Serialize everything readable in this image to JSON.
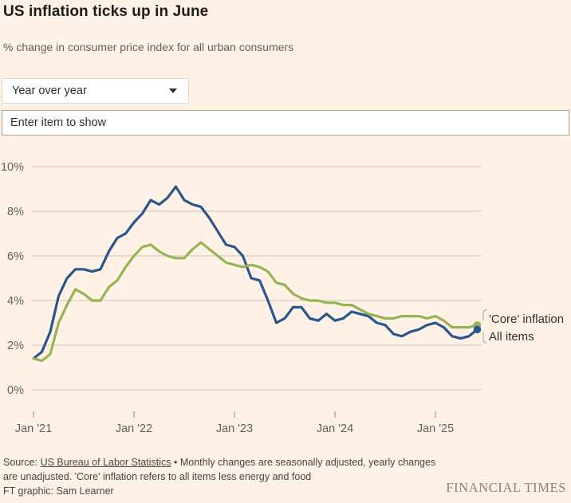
{
  "header": {
    "title": "US inflation ticks up in June",
    "subtitle": "% change in consumer price index for all urban consumers"
  },
  "controls": {
    "dropdown_value": "Year over year",
    "dropdown_icon": "chevron-down-icon",
    "input_placeholder": "Enter item to show"
  },
  "chart_data": {
    "type": "line",
    "title": "US inflation ticks up in June",
    "subtitle": "% change in consumer price index for all urban consumers",
    "x_start": "2021-01",
    "x_end": "2025-06",
    "frequency": "monthly",
    "ylim": [
      0,
      10
    ],
    "grid": "horizontal-only",
    "legend_position": "right-of-line-end",
    "y_ticks": [
      {
        "value": 0,
        "label": "0%"
      },
      {
        "value": 2,
        "label": "2%"
      },
      {
        "value": 4,
        "label": "4%"
      },
      {
        "value": 6,
        "label": "6%"
      },
      {
        "value": 8,
        "label": "8%"
      },
      {
        "value": 10,
        "label": "10%"
      }
    ],
    "x_ticks": [
      {
        "month_index": 0,
        "label": "Jan '21"
      },
      {
        "month_index": 12,
        "label": "Jan '22"
      },
      {
        "month_index": 24,
        "label": "Jan '23"
      },
      {
        "month_index": 36,
        "label": "Jan '24"
      },
      {
        "month_index": 48,
        "label": "Jan '25"
      }
    ],
    "series": [
      {
        "name": "'Core' inflation",
        "color": "#97b455",
        "values": [
          1.4,
          1.3,
          1.6,
          3.0,
          3.8,
          4.5,
          4.3,
          4.0,
          4.0,
          4.6,
          4.9,
          5.5,
          6.0,
          6.4,
          6.5,
          6.2,
          6.0,
          5.9,
          5.9,
          6.3,
          6.6,
          6.3,
          6.0,
          5.7,
          5.6,
          5.5,
          5.6,
          5.5,
          5.3,
          4.8,
          4.7,
          4.3,
          4.1,
          4.0,
          4.0,
          3.9,
          3.9,
          3.8,
          3.8,
          3.6,
          3.4,
          3.3,
          3.2,
          3.2,
          3.3,
          3.3,
          3.3,
          3.2,
          3.3,
          3.1,
          2.8,
          2.8,
          2.8,
          2.9
        ]
      },
      {
        "name": "All items",
        "color": "#28578e",
        "values": [
          1.4,
          1.7,
          2.6,
          4.2,
          5.0,
          5.4,
          5.4,
          5.3,
          5.4,
          6.2,
          6.8,
          7.0,
          7.5,
          7.9,
          8.5,
          8.3,
          8.6,
          9.1,
          8.5,
          8.3,
          8.2,
          7.7,
          7.1,
          6.5,
          6.4,
          6.0,
          5.0,
          4.9,
          4.0,
          3.0,
          3.2,
          3.7,
          3.7,
          3.2,
          3.1,
          3.4,
          3.1,
          3.2,
          3.5,
          3.4,
          3.3,
          3.0,
          2.9,
          2.5,
          2.4,
          2.6,
          2.7,
          2.9,
          3.0,
          2.8,
          2.4,
          2.3,
          2.4,
          2.7
        ]
      }
    ]
  },
  "colors": {
    "background": "#fff1e5",
    "gridline": "#d0c5b7",
    "axis_text": "#66605c",
    "tick_mark": "#8a827a",
    "leader_mark": "#b3aa9d"
  },
  "footer": {
    "source_prefix": "Source: ",
    "source_link": "US Bureau of Labor Statistics",
    "source_rest": " • Monthly changes are seasonally adjusted, yearly changes are unadjusted. 'Core' inflation refers to all items less energy and food",
    "credit": "FT graphic: Sam Learner",
    "brand": "FINANCIAL TIMES"
  }
}
